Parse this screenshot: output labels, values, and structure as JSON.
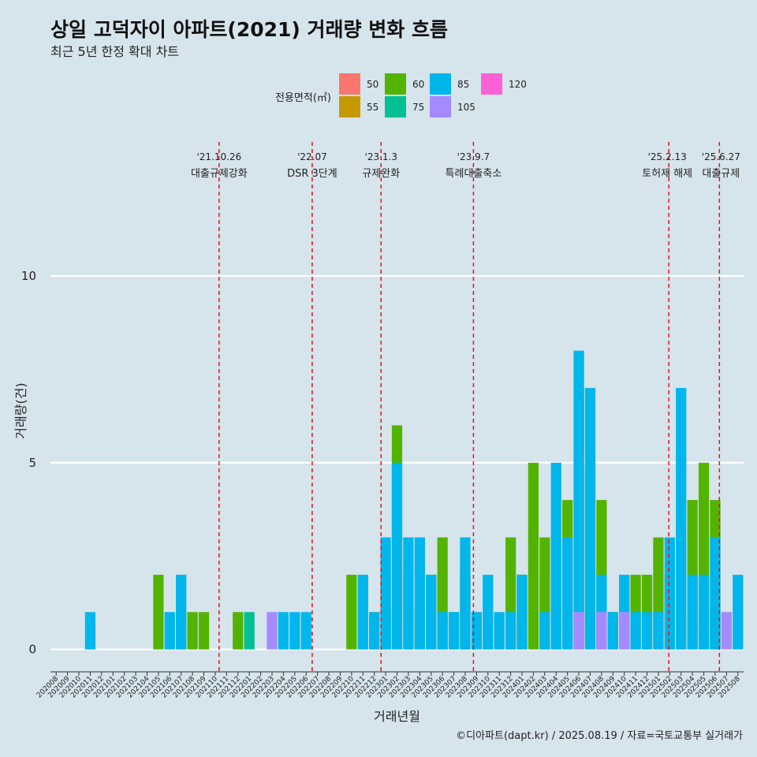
{
  "title": "상일 고덕자이 아파트(2021) 거래량 변화 흐름",
  "subtitle": "최근 5년 한정 확대 차트",
  "caption": "©디아파트(dapt.kr) / 2025.08.19 / 자료=국토교통부 실거래가",
  "chart_data": {
    "type": "bar",
    "xlabel": "거래년월",
    "ylabel": "거래량(건)",
    "ylim": [
      -0.6,
      13.8
    ],
    "yticks": [
      0,
      5,
      10
    ],
    "legend": {
      "title": "전용면적(㎡)",
      "placement": "top",
      "entries": [
        {
          "label": "50",
          "color": "#f8766d"
        },
        {
          "label": "55",
          "color": "#c49a00"
        },
        {
          "label": "60",
          "color": "#53b400"
        },
        {
          "label": "75",
          "color": "#00c094"
        },
        {
          "label": "85",
          "color": "#00b6eb"
        },
        {
          "label": "105",
          "color": "#a58aff"
        },
        {
          "label": "120",
          "color": "#fb61d7"
        }
      ]
    },
    "categories": [
      "202008",
      "202009",
      "202010",
      "202011",
      "202012",
      "202101",
      "202102",
      "202103",
      "202104",
      "202105",
      "202106",
      "202107",
      "202108",
      "202109",
      "202110",
      "202111",
      "202112",
      "202201",
      "202202",
      "202203",
      "202204",
      "202205",
      "202206",
      "202207",
      "202208",
      "202209",
      "202210",
      "202211",
      "202212",
      "202301",
      "202302",
      "202303",
      "202304",
      "202305",
      "202306",
      "202307",
      "202308",
      "202309",
      "202310",
      "202311",
      "202312",
      "202401",
      "202402",
      "202403",
      "202404",
      "202405",
      "202406",
      "202407",
      "202408",
      "202409",
      "202410",
      "202411",
      "202412",
      "202501",
      "202502",
      "202503",
      "202504",
      "202505",
      "202506",
      "202507",
      "202508"
    ],
    "series": [
      {
        "name": "50",
        "values": [
          0,
          0,
          0,
          0,
          0,
          0,
          0,
          0,
          0,
          0,
          0,
          0,
          0,
          0,
          0,
          0,
          0,
          0,
          0,
          0,
          0,
          0,
          0,
          0,
          0,
          0,
          0,
          0,
          0,
          0,
          0,
          0,
          0,
          0,
          1,
          0,
          0,
          0,
          0,
          0,
          1,
          0,
          0,
          2,
          1,
          0,
          0,
          0,
          0,
          0,
          0,
          0,
          0,
          0,
          0,
          0,
          0,
          0,
          0,
          0,
          0
        ]
      },
      {
        "name": "55",
        "values": [
          0,
          0,
          0,
          0,
          0,
          0,
          0,
          0,
          0,
          0,
          0,
          0,
          0,
          0,
          0,
          0,
          0,
          0,
          0,
          0,
          0,
          0,
          0,
          0,
          0,
          0,
          0,
          0,
          0,
          0,
          0,
          0,
          0,
          0,
          0,
          0,
          2,
          0,
          0,
          0,
          0,
          0,
          0,
          0,
          0,
          0,
          0,
          0,
          0,
          0,
          0,
          0,
          0,
          0,
          0,
          0,
          0,
          0,
          0,
          0,
          0
        ]
      },
      {
        "name": "60",
        "values": [
          0,
          0,
          0,
          0,
          0,
          0,
          0,
          0,
          0,
          2,
          0,
          1,
          1,
          1,
          0,
          0,
          1,
          0,
          0,
          0,
          0,
          0,
          0,
          0,
          0,
          0,
          2,
          0,
          1,
          2,
          6,
          2,
          1,
          2,
          3,
          1,
          2,
          0,
          1,
          0,
          3,
          2,
          5,
          3,
          3,
          4,
          7,
          5,
          4,
          1,
          1,
          2,
          2,
          3,
          2,
          1,
          4,
          5,
          4,
          0,
          0
        ]
      },
      {
        "name": "75",
        "values": [
          0,
          0,
          0,
          0,
          0,
          0,
          0,
          0,
          0,
          0,
          0,
          0,
          0,
          0,
          0,
          0,
          0,
          1,
          0,
          0,
          0,
          0,
          0,
          0,
          0,
          0,
          0,
          0,
          0,
          1,
          0,
          0,
          0,
          0,
          0,
          0,
          0,
          0,
          0,
          0,
          0,
          0,
          0,
          0,
          0,
          0,
          0,
          0,
          0,
          0,
          0,
          0,
          0,
          0,
          0,
          0,
          0,
          0,
          1,
          0,
          0
        ]
      },
      {
        "name": "85",
        "values": [
          0,
          0,
          0,
          1,
          0,
          0,
          0,
          0,
          0,
          0,
          1,
          2,
          0,
          0,
          0,
          0,
          0,
          0,
          0,
          0,
          1,
          1,
          1,
          0,
          0,
          0,
          0,
          2,
          1,
          3,
          5,
          3,
          3,
          2,
          1,
          1,
          3,
          1,
          2,
          1,
          1,
          2,
          0,
          1,
          5,
          3,
          8,
          7,
          2,
          1,
          2,
          1,
          1,
          1,
          3,
          7,
          2,
          2,
          3,
          0,
          2
        ]
      },
      {
        "name": "105",
        "values": [
          0,
          0,
          0,
          0,
          0,
          0,
          0,
          0,
          0,
          0,
          0,
          0,
          0,
          0,
          0,
          0,
          0,
          0,
          0,
          1,
          0,
          0,
          0,
          0,
          0,
          0,
          0,
          0,
          0,
          0,
          0,
          0,
          0,
          0,
          0,
          0,
          0,
          0,
          0,
          0,
          0,
          0,
          0,
          0,
          0,
          0,
          1,
          0,
          1,
          0,
          1,
          0,
          0,
          0,
          0,
          0,
          0,
          0,
          0,
          1,
          0
        ]
      },
      {
        "name": "120",
        "values": [
          0,
          0,
          0,
          0,
          0,
          0,
          0,
          0,
          0,
          0,
          0,
          0,
          0,
          0,
          0,
          0,
          0,
          0,
          0,
          0,
          0,
          0,
          0,
          0,
          0,
          0,
          0,
          0,
          0,
          0,
          0,
          0,
          0,
          0,
          0,
          0,
          0,
          0,
          0,
          0,
          0,
          0,
          0,
          0,
          0,
          0,
          0,
          0,
          0,
          0,
          0,
          0,
          0,
          0,
          0,
          0,
          0,
          0,
          0,
          0,
          0
        ]
      }
    ],
    "events": [
      {
        "date": "'21.10.26",
        "label": "대출규제강화",
        "month": "202110",
        "day": 26
      },
      {
        "date": "'22.07",
        "label": "DSR 3단계",
        "month": "202207",
        "day": 1
      },
      {
        "date": "'23.1.3",
        "label": "규제완화",
        "month": "202301",
        "day": 3
      },
      {
        "date": "'23.9.7",
        "label": "특례대출축소",
        "month": "202309",
        "day": 7
      },
      {
        "date": "'25.2.13",
        "label": "토허제 해제",
        "month": "202502",
        "day": 13
      },
      {
        "date": "'25.6.27",
        "label": "대출규제",
        "month": "202506",
        "day": 27
      }
    ]
  }
}
